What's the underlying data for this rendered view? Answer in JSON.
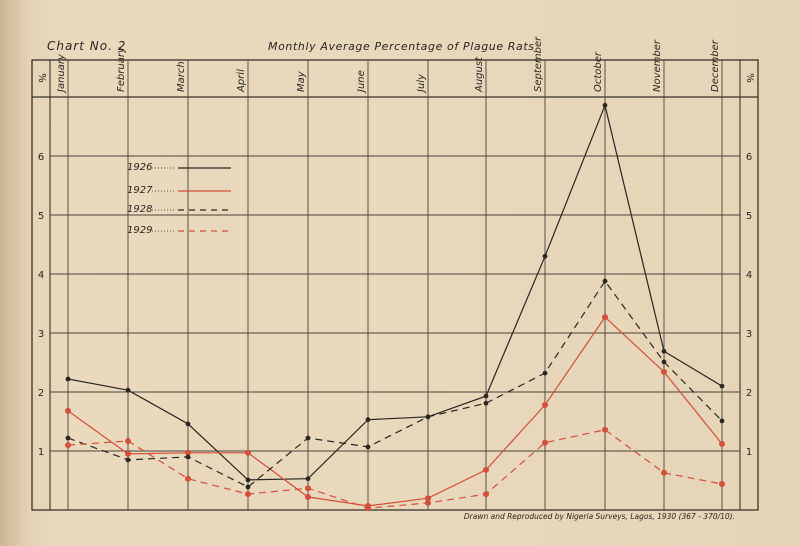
{
  "header": {
    "chart_number": "Chart No. 2",
    "title": "Monthly Average Percentage of Plague Rats"
  },
  "axis": {
    "left_unit_label": "%",
    "right_unit_label": "%"
  },
  "footer": {
    "credit": "Drawn and Reproduced by Nigeria Surveys, Lagos, 1930 (367 - 370/10)."
  },
  "colors": {
    "paper": "#e8d8bc",
    "ink": "#2b2620",
    "red": "#d2503c",
    "grid": "#5a5248"
  },
  "chart_data": {
    "type": "line",
    "title": "Monthly Average Percentage of Plague Rats",
    "subtitle": "Chart No. 2",
    "xlabel": "",
    "ylabel": "%",
    "categories": [
      "January",
      "February",
      "March",
      "April",
      "May",
      "June",
      "July",
      "August",
      "September",
      "October",
      "November",
      "December"
    ],
    "ylim": [
      0,
      7
    ],
    "yticks": [
      1,
      2,
      3,
      4,
      5,
      6
    ],
    "grid": true,
    "legend_position": "upper-left inside",
    "series": [
      {
        "name": "1926",
        "color": "#2b2620",
        "dash": "solid",
        "values": [
          2.22,
          2.03,
          1.46,
          0.51,
          0.53,
          1.53,
          1.58,
          1.93,
          4.3,
          6.86,
          2.69,
          2.1
        ]
      },
      {
        "name": "1927",
        "color": "#d2503c",
        "dash": "solid",
        "values": [
          1.68,
          0.95,
          0.97,
          0.97,
          0.22,
          0.07,
          0.2,
          0.68,
          1.78,
          3.27,
          2.34,
          1.12
        ]
      },
      {
        "name": "1928",
        "color": "#2b2620",
        "dash": "dashed",
        "values": [
          1.22,
          0.85,
          0.9,
          0.39,
          1.22,
          1.07,
          1.58,
          1.81,
          2.32,
          3.88,
          2.51,
          1.51
        ]
      },
      {
        "name": "1929",
        "color": "#d2503c",
        "dash": "dashed",
        "values": [
          1.1,
          1.17,
          0.53,
          0.27,
          0.37,
          0.03,
          0.12,
          0.27,
          1.14,
          1.36,
          0.63,
          0.44
        ]
      }
    ],
    "annotations": [
      "Drawn and Reproduced by Nigeria Surveys, Lagos, 1930 (367 - 370/10)."
    ]
  }
}
